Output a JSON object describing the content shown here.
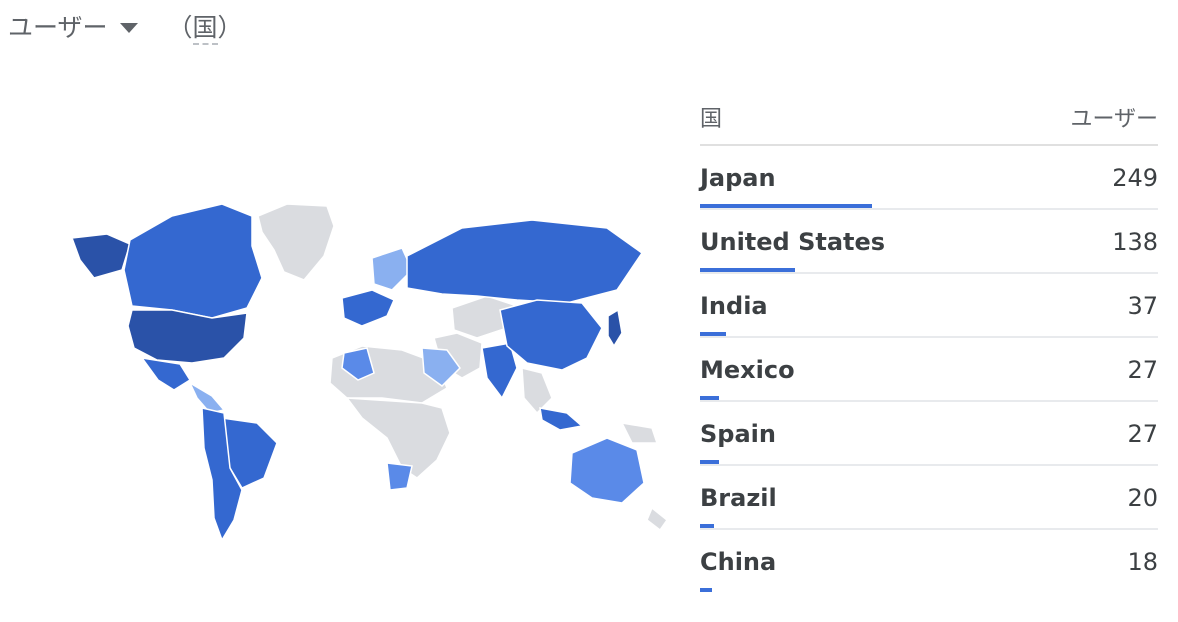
{
  "header": {
    "metric_label": "ユーザー",
    "dimension_prefix": "（",
    "dimension_label": "国",
    "dimension_suffix": "）"
  },
  "table": {
    "col_country": "国",
    "col_users": "ユーザー",
    "rows": [
      {
        "country": "Japan",
        "users": "249",
        "share": 1.0
      },
      {
        "country": "United States",
        "users": "138",
        "share": 0.554
      },
      {
        "country": "India",
        "users": "37",
        "share": 0.149
      },
      {
        "country": "Mexico",
        "users": "27",
        "share": 0.108
      },
      {
        "country": "Spain",
        "users": "27",
        "share": 0.108
      },
      {
        "country": "Brazil",
        "users": "20",
        "share": 0.08
      },
      {
        "country": "China",
        "users": "18",
        "share": 0.072
      }
    ]
  },
  "colors": {
    "no_data": "#dadce0",
    "level_1": "#8ab0f0",
    "level_2": "#5a8ae8",
    "level_3": "#3468d0",
    "level_4": "#2a52a8",
    "bar": "#3b6fd9"
  }
}
